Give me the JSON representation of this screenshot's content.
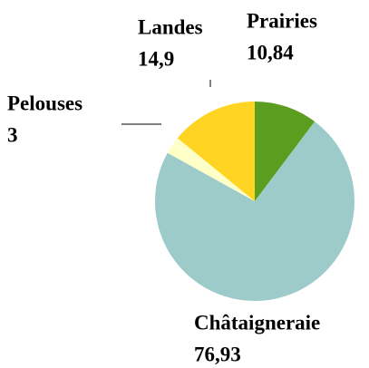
{
  "chart_data": {
    "type": "pie",
    "categories": [
      "Prairies",
      "Châtaigneraie",
      "Pelouses",
      "Landes"
    ],
    "values": [
      10.84,
      76.93,
      3,
      14.9
    ],
    "value_labels": [
      "10,84",
      "76,93",
      "3",
      "14,9"
    ],
    "colors": [
      "#5b9e1f",
      "#9dcbca",
      "#ffffc8",
      "#ffd422"
    ]
  }
}
